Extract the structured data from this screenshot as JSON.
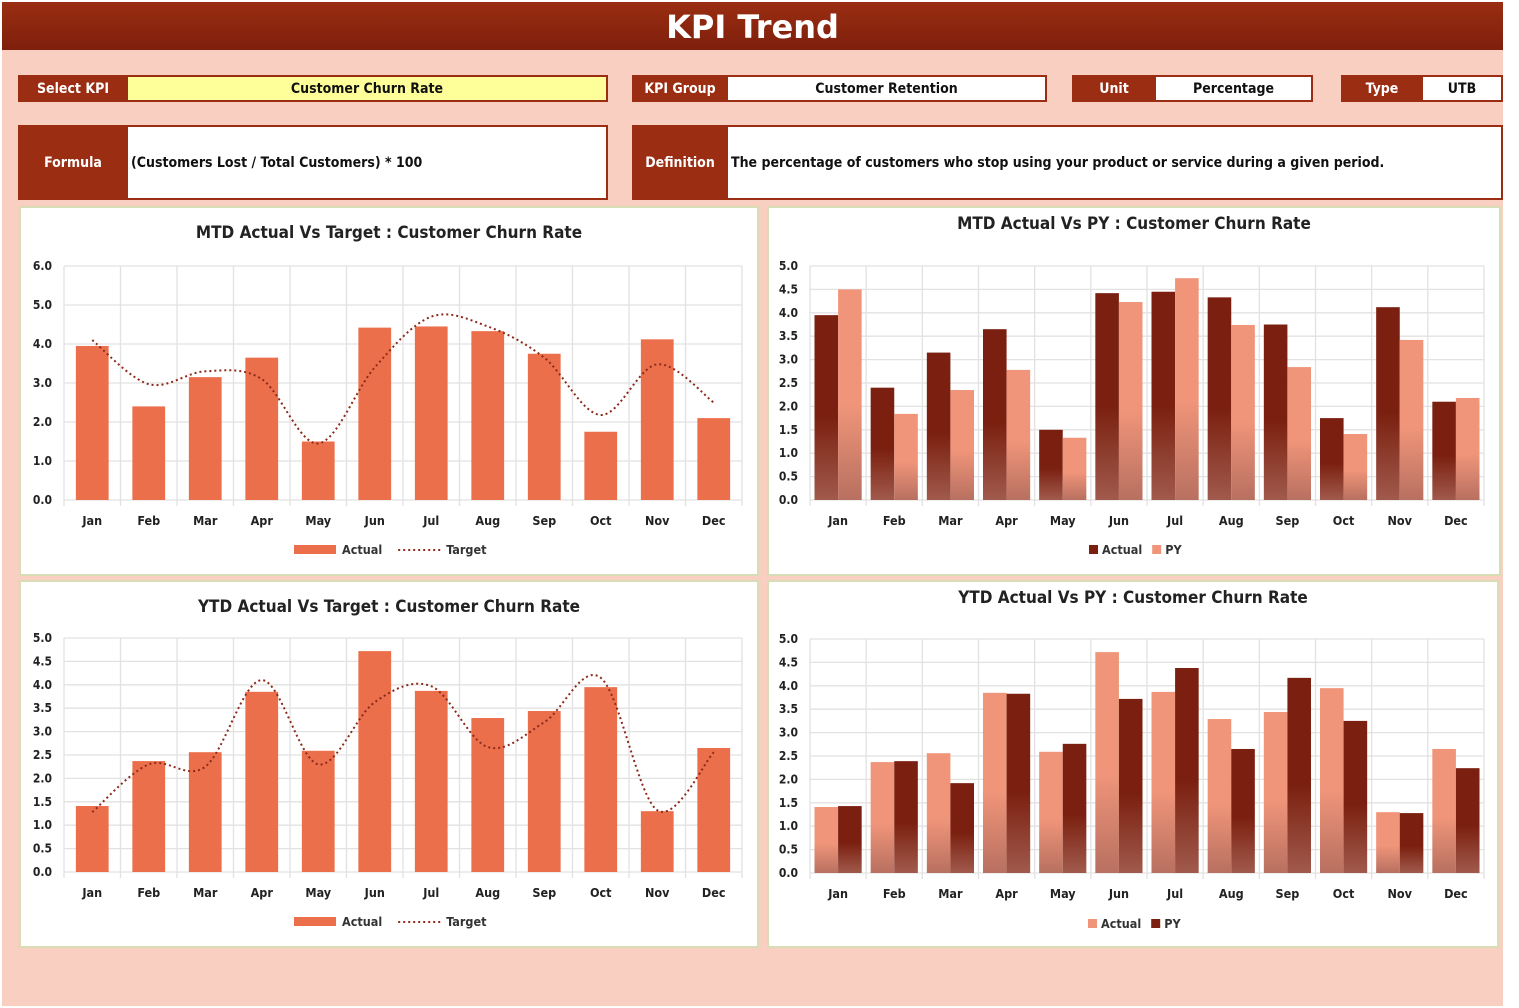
{
  "title": "KPI Trend",
  "fields": {
    "select_kpi_label": "Select KPI",
    "select_kpi_value": "Customer Churn Rate",
    "kpi_group_label": "KPI Group",
    "kpi_group_value": "Customer Retention",
    "unit_label": "Unit",
    "unit_value": "Percentage",
    "type_label": "Type",
    "type_value": "UTB",
    "formula_label": "Formula",
    "formula_value": "(Customers Lost / Total Customers) * 100",
    "definition_label": "Definition",
    "definition_value": "The percentage of customers who stop using your product or service during a given period."
  },
  "colors": {
    "brand": "#9B2D12",
    "selected": "#FFFF99",
    "actual_bar": "#EC6F4C",
    "target_line": "#8B2A1A",
    "dark_bar": "#7B2010",
    "light_bar": "#F0957A"
  },
  "chart_data": [
    {
      "type": "bar+line",
      "title": "MTD Actual Vs Target : Customer Churn Rate",
      "ylim": [
        0,
        6
      ],
      "ystep": 1,
      "ydecimals": 1,
      "grid": true,
      "legend": "bottom",
      "categories": [
        "Jan",
        "Feb",
        "Mar",
        "Apr",
        "May",
        "Jun",
        "Jul",
        "Aug",
        "Sep",
        "Oct",
        "Nov",
        "Dec"
      ],
      "series": [
        {
          "name": "Actual",
          "kind": "bar",
          "values": [
            3.95,
            2.4,
            3.15,
            3.65,
            1.5,
            4.42,
            4.45,
            4.33,
            3.75,
            1.75,
            4.12,
            2.1
          ]
        },
        {
          "name": "Target",
          "kind": "line",
          "values": [
            4.1,
            2.97,
            3.3,
            3.1,
            1.45,
            3.4,
            4.7,
            4.45,
            3.65,
            2.18,
            3.48,
            2.5
          ]
        }
      ]
    },
    {
      "type": "bar",
      "title": "MTD Actual Vs PY : Customer Churn Rate",
      "ylim": [
        0,
        5
      ],
      "ystep": 0.5,
      "ydecimals": 1,
      "grid": true,
      "legend": "bottom",
      "categories": [
        "Jan",
        "Feb",
        "Mar",
        "Apr",
        "May",
        "Jun",
        "Jul",
        "Aug",
        "Sep",
        "Oct",
        "Nov",
        "Dec"
      ],
      "series": [
        {
          "name": "Actual",
          "kind": "bar",
          "values": [
            3.95,
            2.4,
            3.15,
            3.65,
            1.5,
            4.42,
            4.45,
            4.33,
            3.75,
            1.75,
            4.12,
            2.1
          ]
        },
        {
          "name": "PY",
          "kind": "bar",
          "values": [
            4.5,
            1.84,
            2.35,
            2.78,
            1.33,
            4.23,
            4.74,
            3.74,
            2.84,
            1.41,
            3.42,
            2.18
          ]
        }
      ]
    },
    {
      "type": "bar+line",
      "title": "YTD Actual Vs Target : Customer Churn Rate",
      "ylim": [
        0,
        5
      ],
      "ystep": 0.5,
      "ydecimals": 1,
      "grid": true,
      "legend": "bottom",
      "categories": [
        "Jan",
        "Feb",
        "Mar",
        "Apr",
        "May",
        "Jun",
        "Jul",
        "Aug",
        "Sep",
        "Oct",
        "Nov",
        "Dec"
      ],
      "series": [
        {
          "name": "Actual",
          "kind": "bar",
          "values": [
            1.41,
            2.37,
            2.56,
            3.85,
            2.59,
            4.72,
            3.87,
            3.29,
            3.44,
            3.95,
            1.3,
            2.65
          ]
        },
        {
          "name": "Target",
          "kind": "line",
          "values": [
            1.28,
            2.3,
            2.25,
            4.1,
            2.3,
            3.63,
            3.97,
            2.67,
            3.2,
            4.15,
            1.32,
            2.56
          ]
        }
      ]
    },
    {
      "type": "bar",
      "title": "YTD Actual Vs PY : Customer Churn Rate",
      "ylim": [
        0,
        5
      ],
      "ystep": 0.5,
      "ydecimals": 1,
      "grid": true,
      "legend": "bottom",
      "categories": [
        "Jan",
        "Feb",
        "Mar",
        "Apr",
        "May",
        "Jun",
        "Jul",
        "Aug",
        "Sep",
        "Oct",
        "Nov",
        "Dec"
      ],
      "series": [
        {
          "name": "Actual",
          "kind": "bar",
          "values": [
            1.41,
            2.37,
            2.56,
            3.85,
            2.59,
            4.72,
            3.87,
            3.29,
            3.44,
            3.95,
            1.3,
            2.65
          ]
        },
        {
          "name": "PY",
          "kind": "bar",
          "values": [
            1.43,
            2.39,
            1.92,
            3.83,
            2.76,
            3.72,
            4.38,
            2.65,
            4.17,
            3.25,
            1.28,
            2.24
          ]
        }
      ]
    }
  ]
}
